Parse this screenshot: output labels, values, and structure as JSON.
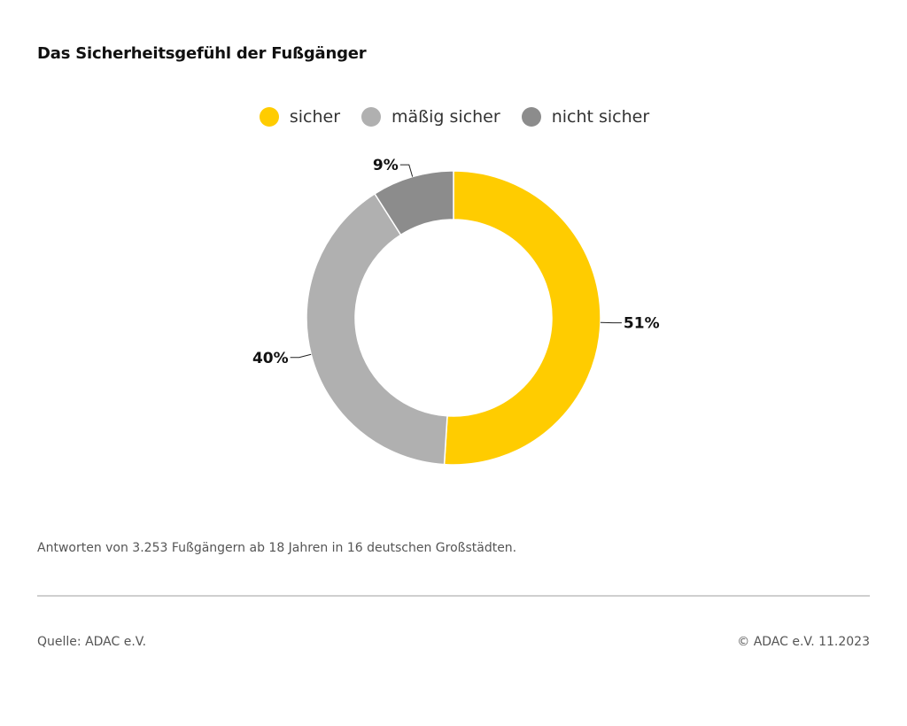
{
  "header": {
    "title": "Das Sicherheitsgefühl der Fußgänger"
  },
  "chart_data": {
    "type": "pie",
    "variant": "donut",
    "title": "Das Sicherheitsgefühl der Fußgänger",
    "categories": [
      "sicher",
      "mäßig sicher",
      "nicht sicher"
    ],
    "values": [
      51,
      40,
      9
    ],
    "labels": [
      "51%",
      "40%",
      "9%"
    ],
    "colors": [
      "#FFCC00",
      "#B0B0B0",
      "#8C8C8C"
    ],
    "legend_position": "top-center"
  },
  "footer": {
    "note": "Antworten von 3.253 Fußgängern ab 18 Jahren in 16 deutschen Großstädten.",
    "source": "Quelle: ADAC e.V.",
    "copyright": "© ADAC e.V. 11.2023"
  }
}
